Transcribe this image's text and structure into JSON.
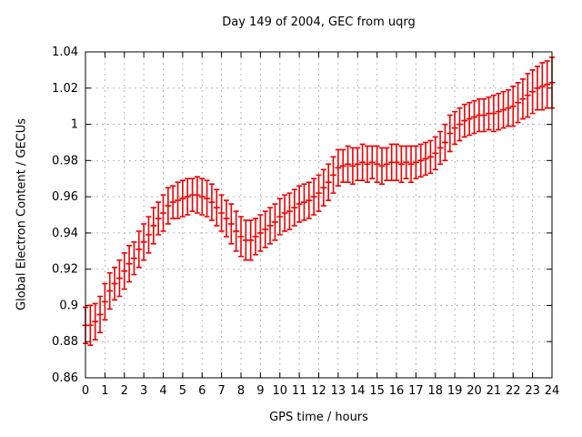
{
  "chart_data": {
    "type": "scatter",
    "style": "error-bars",
    "title": "Day 149 of 2004, GEC from uqrg",
    "xlabel": "GPS time / hours",
    "ylabel": "Global Electron Content / GECUs",
    "xlim": [
      0,
      24
    ],
    "ylim": [
      0.86,
      1.04
    ],
    "grid": true,
    "legend": "none",
    "x_ticks": [
      0,
      1,
      2,
      3,
      4,
      5,
      6,
      7,
      8,
      9,
      10,
      11,
      12,
      13,
      14,
      15,
      16,
      17,
      18,
      19,
      20,
      21,
      22,
      23,
      24
    ],
    "x_tick_labels": [
      "0",
      "1",
      "2",
      "3",
      "4",
      "5",
      "6",
      "7",
      "8",
      "9",
      "10",
      "11",
      "12",
      "13",
      "14",
      "15",
      "16",
      "17",
      "18",
      "19",
      "20",
      "21",
      "22",
      "23",
      "24"
    ],
    "y_ticks": [
      0.86,
      0.88,
      0.9,
      0.92,
      0.94,
      0.96,
      0.98,
      1.0,
      1.02,
      1.04
    ],
    "y_tick_labels": [
      "0.86",
      "0.88",
      "0.9",
      "0.92",
      "0.94",
      "0.96",
      "0.98",
      "1",
      "1.02",
      "1.04"
    ],
    "colors": {
      "series": "#ee0000",
      "grid": "#b4b4b4",
      "axis": "#000000",
      "background": "#ffffff"
    },
    "x": [
      0,
      0.25,
      0.5,
      0.75,
      1,
      1.25,
      1.5,
      1.75,
      2,
      2.25,
      2.5,
      2.75,
      3,
      3.25,
      3.5,
      3.75,
      4,
      4.25,
      4.5,
      4.75,
      5,
      5.25,
      5.5,
      5.75,
      6,
      6.25,
      6.5,
      6.75,
      7,
      7.25,
      7.5,
      7.75,
      8,
      8.25,
      8.5,
      8.75,
      9,
      9.25,
      9.5,
      9.75,
      10,
      10.25,
      10.5,
      10.75,
      11,
      11.25,
      11.5,
      11.75,
      12,
      12.25,
      12.5,
      12.75,
      13,
      13.25,
      13.5,
      13.75,
      14,
      14.25,
      14.5,
      14.75,
      15,
      15.25,
      15.5,
      15.75,
      16,
      16.25,
      16.5,
      16.75,
      17,
      17.25,
      17.5,
      17.75,
      18,
      18.25,
      18.5,
      18.75,
      19,
      19.25,
      19.5,
      19.75,
      20,
      20.25,
      20.5,
      20.75,
      21,
      21.25,
      21.5,
      21.75,
      22,
      22.25,
      22.5,
      22.75,
      23,
      23.25,
      23.5,
      23.75,
      24
    ],
    "y": [
      0.889,
      0.889,
      0.891,
      0.895,
      0.902,
      0.908,
      0.912,
      0.915,
      0.919,
      0.923,
      0.926,
      0.931,
      0.935,
      0.939,
      0.944,
      0.948,
      0.951,
      0.955,
      0.957,
      0.958,
      0.959,
      0.96,
      0.961,
      0.961,
      0.96,
      0.959,
      0.957,
      0.954,
      0.951,
      0.948,
      0.945,
      0.941,
      0.938,
      0.936,
      0.936,
      0.938,
      0.94,
      0.942,
      0.944,
      0.946,
      0.949,
      0.951,
      0.952,
      0.954,
      0.956,
      0.957,
      0.958,
      0.96,
      0.962,
      0.965,
      0.968,
      0.972,
      0.976,
      0.977,
      0.978,
      0.977,
      0.978,
      0.979,
      0.978,
      0.979,
      0.978,
      0.977,
      0.978,
      0.979,
      0.979,
      0.978,
      0.979,
      0.978,
      0.979,
      0.98,
      0.981,
      0.982,
      0.984,
      0.987,
      0.99,
      0.995,
      0.998,
      1.0,
      1.002,
      1.003,
      1.004,
      1.005,
      1.005,
      1.006,
      1.006,
      1.007,
      1.008,
      1.009,
      1.01,
      1.012,
      1.014,
      1.016,
      1.018,
      1.02,
      1.021,
      1.022,
      1.023
    ],
    "yerr": [
      0.01,
      0.011,
      0.01,
      0.01,
      0.01,
      0.01,
      0.009,
      0.01,
      0.01,
      0.01,
      0.009,
      0.01,
      0.01,
      0.01,
      0.01,
      0.009,
      0.01,
      0.01,
      0.009,
      0.01,
      0.01,
      0.01,
      0.009,
      0.01,
      0.01,
      0.01,
      0.01,
      0.01,
      0.01,
      0.01,
      0.011,
      0.011,
      0.011,
      0.011,
      0.011,
      0.01,
      0.01,
      0.01,
      0.01,
      0.01,
      0.01,
      0.01,
      0.01,
      0.01,
      0.01,
      0.01,
      0.01,
      0.01,
      0.01,
      0.01,
      0.01,
      0.01,
      0.01,
      0.009,
      0.01,
      0.01,
      0.009,
      0.01,
      0.01,
      0.009,
      0.01,
      0.01,
      0.009,
      0.01,
      0.01,
      0.01,
      0.009,
      0.01,
      0.009,
      0.009,
      0.009,
      0.009,
      0.009,
      0.009,
      0.01,
      0.01,
      0.009,
      0.009,
      0.009,
      0.009,
      0.009,
      0.009,
      0.009,
      0.009,
      0.01,
      0.01,
      0.01,
      0.01,
      0.011,
      0.011,
      0.011,
      0.012,
      0.012,
      0.012,
      0.013,
      0.013,
      0.014
    ]
  }
}
